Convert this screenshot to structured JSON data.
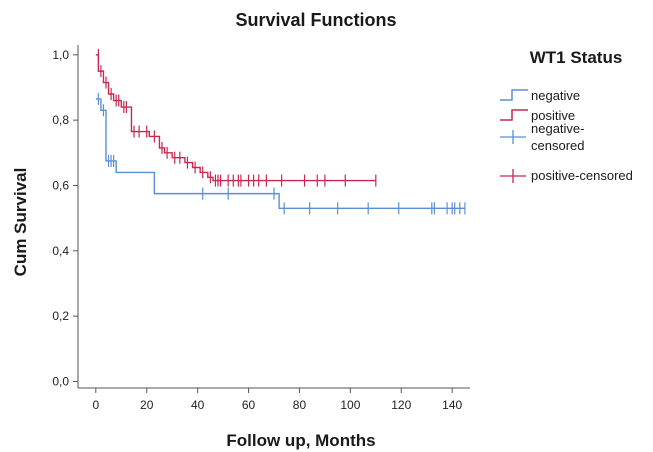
{
  "chart_data": {
    "type": "line",
    "title": "Survival Functions",
    "xlabel": "Follow up, Months",
    "ylabel": "Cum Survival",
    "xlim": [
      -7,
      147
    ],
    "ylim": [
      -0.02,
      1.03
    ],
    "xticks": [
      0,
      20,
      40,
      60,
      80,
      100,
      120,
      140
    ],
    "xtick_labels": [
      "0",
      "20",
      "40",
      "60",
      "80",
      "100",
      "120",
      "140"
    ],
    "yticks": [
      0.0,
      0.2,
      0.4,
      0.6,
      0.8,
      1.0
    ],
    "ytick_labels": [
      "0,0",
      "0,2",
      "0,4",
      "0,6",
      "0,8",
      "1,0"
    ],
    "grid": false,
    "legend": {
      "title": "WT1 Status",
      "placement": "right",
      "entries": [
        {
          "label_lines": [
            "negative"
          ],
          "series": "negative",
          "kind": "line"
        },
        {
          "label_lines": [
            "positive"
          ],
          "series": "positive",
          "kind": "line"
        },
        {
          "label_lines": [
            "negative-",
            "censored"
          ],
          "series": "negative",
          "kind": "censor"
        },
        {
          "label_lines": [
            "positive-censored"
          ],
          "series": "positive",
          "kind": "censor"
        }
      ]
    },
    "series": [
      {
        "name": "negative",
        "color": "#5b8fd4",
        "steps": [
          [
            0,
            0.865
          ],
          [
            2,
            0.83
          ],
          [
            4,
            0.675
          ],
          [
            8,
            0.64
          ],
          [
            23,
            0.575
          ],
          [
            72,
            0.53
          ],
          [
            145,
            0.53
          ]
        ],
        "censored": [
          [
            1,
            0.865
          ],
          [
            3,
            0.83
          ],
          [
            5,
            0.675
          ],
          [
            6,
            0.675
          ],
          [
            7,
            0.675
          ],
          [
            42,
            0.575
          ],
          [
            52,
            0.575
          ],
          [
            70,
            0.575
          ],
          [
            74,
            0.53
          ],
          [
            84,
            0.53
          ],
          [
            95,
            0.53
          ],
          [
            107,
            0.53
          ],
          [
            119,
            0.53
          ],
          [
            132,
            0.53
          ],
          [
            133,
            0.53
          ],
          [
            138,
            0.53
          ],
          [
            140,
            0.53
          ],
          [
            141,
            0.53
          ],
          [
            143,
            0.53
          ],
          [
            145,
            0.53
          ]
        ]
      },
      {
        "name": "positive",
        "color": "#c8284f",
        "steps": [
          [
            0,
            1.0
          ],
          [
            1,
            0.95
          ],
          [
            3,
            0.915
          ],
          [
            5,
            0.88
          ],
          [
            7,
            0.86
          ],
          [
            10,
            0.84
          ],
          [
            14,
            0.765
          ],
          [
            21,
            0.75
          ],
          [
            25,
            0.715
          ],
          [
            27,
            0.7
          ],
          [
            30,
            0.685
          ],
          [
            35,
            0.67
          ],
          [
            38,
            0.655
          ],
          [
            41,
            0.64
          ],
          [
            44,
            0.625
          ],
          [
            46,
            0.615
          ],
          [
            110,
            0.615
          ]
        ],
        "censored": [
          [
            1,
            1.0
          ],
          [
            2,
            0.95
          ],
          [
            4,
            0.915
          ],
          [
            6,
            0.88
          ],
          [
            8,
            0.86
          ],
          [
            9,
            0.86
          ],
          [
            11,
            0.84
          ],
          [
            12,
            0.84
          ],
          [
            15,
            0.765
          ],
          [
            17,
            0.765
          ],
          [
            20,
            0.765
          ],
          [
            23,
            0.75
          ],
          [
            26,
            0.715
          ],
          [
            28,
            0.7
          ],
          [
            31,
            0.685
          ],
          [
            33,
            0.685
          ],
          [
            36,
            0.67
          ],
          [
            39,
            0.655
          ],
          [
            42,
            0.64
          ],
          [
            45,
            0.625
          ],
          [
            47,
            0.615
          ],
          [
            48,
            0.615
          ],
          [
            49,
            0.615
          ],
          [
            52,
            0.615
          ],
          [
            54,
            0.615
          ],
          [
            56,
            0.615
          ],
          [
            57,
            0.615
          ],
          [
            60,
            0.615
          ],
          [
            62,
            0.615
          ],
          [
            64,
            0.615
          ],
          [
            67,
            0.615
          ],
          [
            73,
            0.615
          ],
          [
            82,
            0.615
          ],
          [
            87,
            0.615
          ],
          [
            90,
            0.615
          ],
          [
            98,
            0.615
          ],
          [
            110,
            0.615
          ]
        ]
      }
    ]
  }
}
